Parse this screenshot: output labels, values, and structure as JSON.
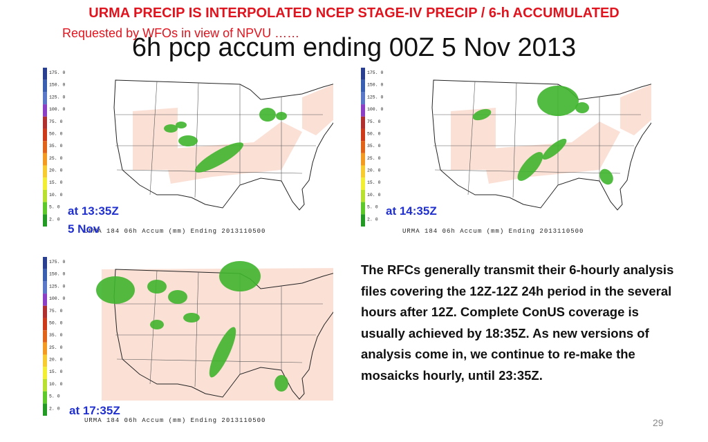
{
  "header": {
    "line1": "URMA PRECIP IS INTERPOLATED  NCEP STAGE-IV PRECIP / 6-h ACCUMULATED",
    "line2": "Requested by WFOs in view of NPVU ……",
    "title": "6h pcp accum ending 00Z 5 Nov 2013"
  },
  "legend": {
    "ticks": [
      "175. 0",
      "150. 0",
      "125. 0",
      "100. 0",
      "75. 0",
      "50. 0",
      "35. 0",
      "25. 0",
      "20. 0",
      "15. 0",
      "10. 0",
      "5. 0",
      "2. 0"
    ],
    "colors": [
      "#2a3f8f",
      "#3a5fb0",
      "#5b78c8",
      "#8a3fc4",
      "#b03030",
      "#cc3a1a",
      "#e0651a",
      "#f39a22",
      "#f6cc30",
      "#f2ee33",
      "#b8e030",
      "#5cc82a",
      "#239a23"
    ]
  },
  "panels": [
    {
      "caption": "URMA 184 06h Accum (mm) Ending 2013110500",
      "time": "at 13:35Z",
      "time2": "5 Nov"
    },
    {
      "caption": "URMA 184 06h Accum (mm) Ending 2013110500",
      "time": "at 14:35Z"
    },
    {
      "caption": "URMA 184 06h Accum (mm) Ending 2013110500",
      "time": "at 17:35Z"
    }
  ],
  "description": "The RFCs generally transmit their 6-hourly analysis files covering the 12Z-12Z 24h period in the several hours after 12Z. Complete ConUS coverage is usually achieved by 18:35Z.  As new versions of analysis come in, we continue to re-make the mosaicks hourly, until 23:35Z.",
  "page_number": "29",
  "colors": {
    "header_red": "#e0141e",
    "time_blue": "#1f2fd0",
    "coverage": "#fbe0d6",
    "rain": "#3fb52d"
  }
}
